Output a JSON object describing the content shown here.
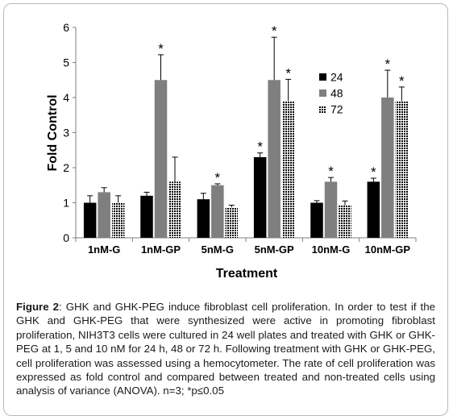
{
  "chart_data": {
    "type": "bar",
    "categories": [
      "1nM-G",
      "1nM-GP",
      "5nM-G",
      "5nM-GP",
      "10nM-G",
      "10nM-GP"
    ],
    "series": [
      {
        "name": "24",
        "values": [
          1.0,
          1.2,
          1.1,
          2.3,
          1.0,
          1.6
        ],
        "errors": [
          0.2,
          0.1,
          0.17,
          0.12,
          0.06,
          0.1
        ],
        "fill": "#000000",
        "pattern": "solid"
      },
      {
        "name": "48",
        "values": [
          1.3,
          4.5,
          1.5,
          4.5,
          1.6,
          4.0
        ],
        "errors": [
          0.13,
          0.72,
          0.04,
          1.22,
          0.12,
          0.78
        ],
        "fill": "#7f7f7f",
        "pattern": "solid"
      },
      {
        "name": "72",
        "values": [
          1.0,
          1.6,
          0.87,
          3.9,
          0.93,
          3.9
        ],
        "errors": [
          0.2,
          0.7,
          0.06,
          0.62,
          0.12,
          0.4
        ],
        "fill": "#000000",
        "pattern": "dots"
      }
    ],
    "significance": [
      [
        false,
        false,
        false,
        true,
        false,
        true
      ],
      [
        false,
        true,
        true,
        true,
        true,
        true
      ],
      [
        false,
        false,
        false,
        true,
        false,
        true
      ]
    ],
    "significance_marker": "*",
    "xlabel": "Treatment",
    "ylabel": "Fold Control",
    "ylim": [
      0,
      6
    ],
    "yticks": [
      0,
      1,
      2,
      3,
      4,
      5,
      6
    ],
    "grid": false,
    "legend_position": "top-right"
  },
  "caption": {
    "label": "Figure 2",
    "text": ": GHK and GHK-PEG induce fibroblast cell proliferation. In order to test if the GHK and GHK-PEG that were synthesized were active in promoting fibroblast proliferation, NIH3T3 cells were cultured in 24 well plates and treated with GHK or GHK-PEG at 1, 5 and 10 nM for 24 h, 48 or 72 h. Following treatment with GHK or GHK-PEG, cell proliferation was assessed using a hemocytometer. The rate of cell proliferation was expressed as fold control and compared between treated and non-treated cells using analysis of variance (ANOVA). n=3; *p≤0.05"
  }
}
